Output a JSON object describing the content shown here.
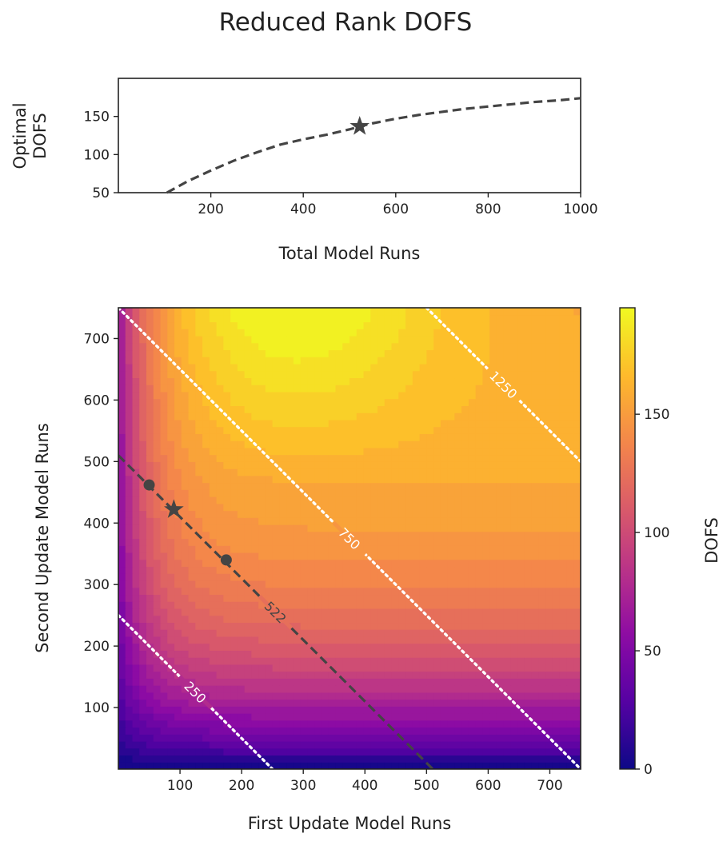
{
  "title": "Reduced Rank DOFS",
  "chart_data": [
    {
      "type": "line",
      "xlabel": "Total Model Runs",
      "ylabel_lines": [
        "Optimal",
        "DOFS"
      ],
      "xlim": [
        0,
        1000
      ],
      "ylim": [
        50,
        200
      ],
      "xticks": [
        200,
        400,
        600,
        800,
        1000
      ],
      "yticks": [
        50,
        100,
        150
      ],
      "series": [
        {
          "style": "dashed",
          "color": "#444444",
          "x": [
            105,
            150,
            200,
            250,
            300,
            350,
            400,
            450,
            500,
            522,
            550,
            600,
            650,
            700,
            750,
            800,
            850,
            900,
            950,
            1000
          ],
          "y": [
            50,
            65,
            79,
            92,
            103,
            113,
            120,
            126,
            133,
            137,
            141,
            147,
            152,
            156,
            160,
            163,
            166,
            169,
            171,
            174
          ]
        }
      ],
      "marker": {
        "shape": "star",
        "x": 522,
        "y": 137
      },
      "grid": false
    },
    {
      "type": "heatmap",
      "xlabel": "First Update Model Runs",
      "ylabel": "Second Update Model Runs",
      "xlim": [
        0,
        750
      ],
      "ylim": [
        0,
        750
      ],
      "xticks": [
        100,
        200,
        300,
        400,
        500,
        600,
        700
      ],
      "yticks": [
        100,
        200,
        300,
        400,
        500,
        600,
        700
      ],
      "colorbar": {
        "label": "DOFS",
        "ticks": [
          0,
          50,
          100,
          150
        ],
        "range": [
          0,
          195
        ],
        "colormap": "plasma"
      },
      "iso_lines": [
        {
          "total": 250,
          "label": "250",
          "style": "dotted",
          "color": "#ffffff"
        },
        {
          "total": 750,
          "label": "750",
          "style": "dotted",
          "color": "#ffffff"
        },
        {
          "total": 1250,
          "label": "1250",
          "style": "dotted",
          "color": "#ffffff"
        },
        {
          "total": 510,
          "label": "522",
          "style": "dashed",
          "color": "#444444"
        }
      ],
      "points": [
        {
          "shape": "circle",
          "x": 50,
          "y": 462
        },
        {
          "shape": "star",
          "x": 90,
          "y": 422
        },
        {
          "shape": "circle",
          "x": 175,
          "y": 340
        }
      ]
    }
  ]
}
